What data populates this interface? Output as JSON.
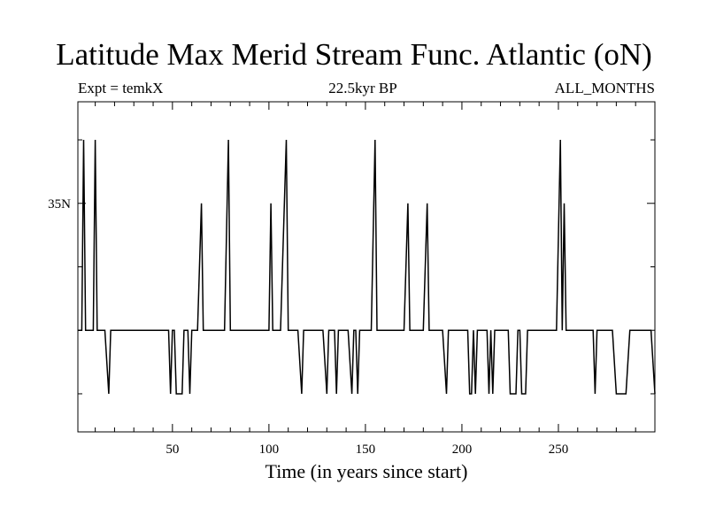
{
  "chart_data": {
    "type": "line",
    "title": "Latitude Max Merid Stream Func. Atlantic (oN)",
    "subtitle_left": "Expt = temkX",
    "subtitle_center": "22.5kyr BP",
    "subtitle_right": "ALL_MONTHS",
    "xlabel": "Time (in years since start)",
    "ylabel": "",
    "xlim": [
      1,
      300
    ],
    "ylim": [
      17,
      43
    ],
    "x_ticks": [
      50,
      100,
      150,
      200,
      250
    ],
    "y_tick_labels": [
      {
        "value": 35,
        "label": "35N"
      }
    ],
    "series": [
      {
        "values": [
          [
            1,
            25
          ],
          [
            3,
            25
          ],
          [
            4,
            40
          ],
          [
            5,
            25
          ],
          [
            9,
            25
          ],
          [
            10,
            40
          ],
          [
            11,
            25
          ],
          [
            15,
            25
          ],
          [
            17,
            20
          ],
          [
            18,
            25
          ],
          [
            48,
            25
          ],
          [
            49,
            20
          ],
          [
            50,
            25
          ],
          [
            51,
            25
          ],
          [
            52,
            20
          ],
          [
            55,
            20
          ],
          [
            56,
            25
          ],
          [
            58,
            25
          ],
          [
            59,
            20
          ],
          [
            60,
            25
          ],
          [
            63,
            25
          ],
          [
            65,
            35
          ],
          [
            66,
            25
          ],
          [
            77,
            25
          ],
          [
            79,
            40
          ],
          [
            80,
            25
          ],
          [
            100,
            25
          ],
          [
            101,
            35
          ],
          [
            102,
            25
          ],
          [
            106,
            25
          ],
          [
            109,
            40
          ],
          [
            110,
            25
          ],
          [
            115,
            25
          ],
          [
            117,
            20
          ],
          [
            118,
            25
          ],
          [
            128,
            25
          ],
          [
            130,
            20
          ],
          [
            131,
            25
          ],
          [
            134,
            25
          ],
          [
            135,
            20
          ],
          [
            136,
            25
          ],
          [
            141,
            25
          ],
          [
            143,
            20
          ],
          [
            144,
            25
          ],
          [
            145,
            25
          ],
          [
            146,
            20
          ],
          [
            147,
            25
          ],
          [
            153,
            25
          ],
          [
            155,
            40
          ],
          [
            156,
            25
          ],
          [
            170,
            25
          ],
          [
            172,
            35
          ],
          [
            173,
            25
          ],
          [
            180,
            25
          ],
          [
            182,
            35
          ],
          [
            183,
            25
          ],
          [
            190,
            25
          ],
          [
            192,
            20
          ],
          [
            193,
            25
          ],
          [
            203,
            25
          ],
          [
            204,
            20
          ],
          [
            205,
            20
          ],
          [
            206,
            25
          ],
          [
            207,
            20
          ],
          [
            208,
            25
          ],
          [
            213,
            25
          ],
          [
            214,
            20
          ],
          [
            215,
            25
          ],
          [
            216,
            20
          ],
          [
            217,
            25
          ],
          [
            224,
            25
          ],
          [
            225,
            20
          ],
          [
            228,
            20
          ],
          [
            229,
            25
          ],
          [
            230,
            25
          ],
          [
            231,
            20
          ],
          [
            233,
            20
          ],
          [
            234,
            25
          ],
          [
            249,
            25
          ],
          [
            251,
            40
          ],
          [
            252,
            25
          ],
          [
            253,
            35
          ],
          [
            254,
            25
          ],
          [
            268,
            25
          ],
          [
            269,
            20
          ],
          [
            270,
            25
          ],
          [
            278,
            25
          ],
          [
            280,
            20
          ],
          [
            285,
            20
          ],
          [
            287,
            25
          ],
          [
            298,
            25
          ],
          [
            300,
            20
          ]
        ]
      }
    ]
  }
}
